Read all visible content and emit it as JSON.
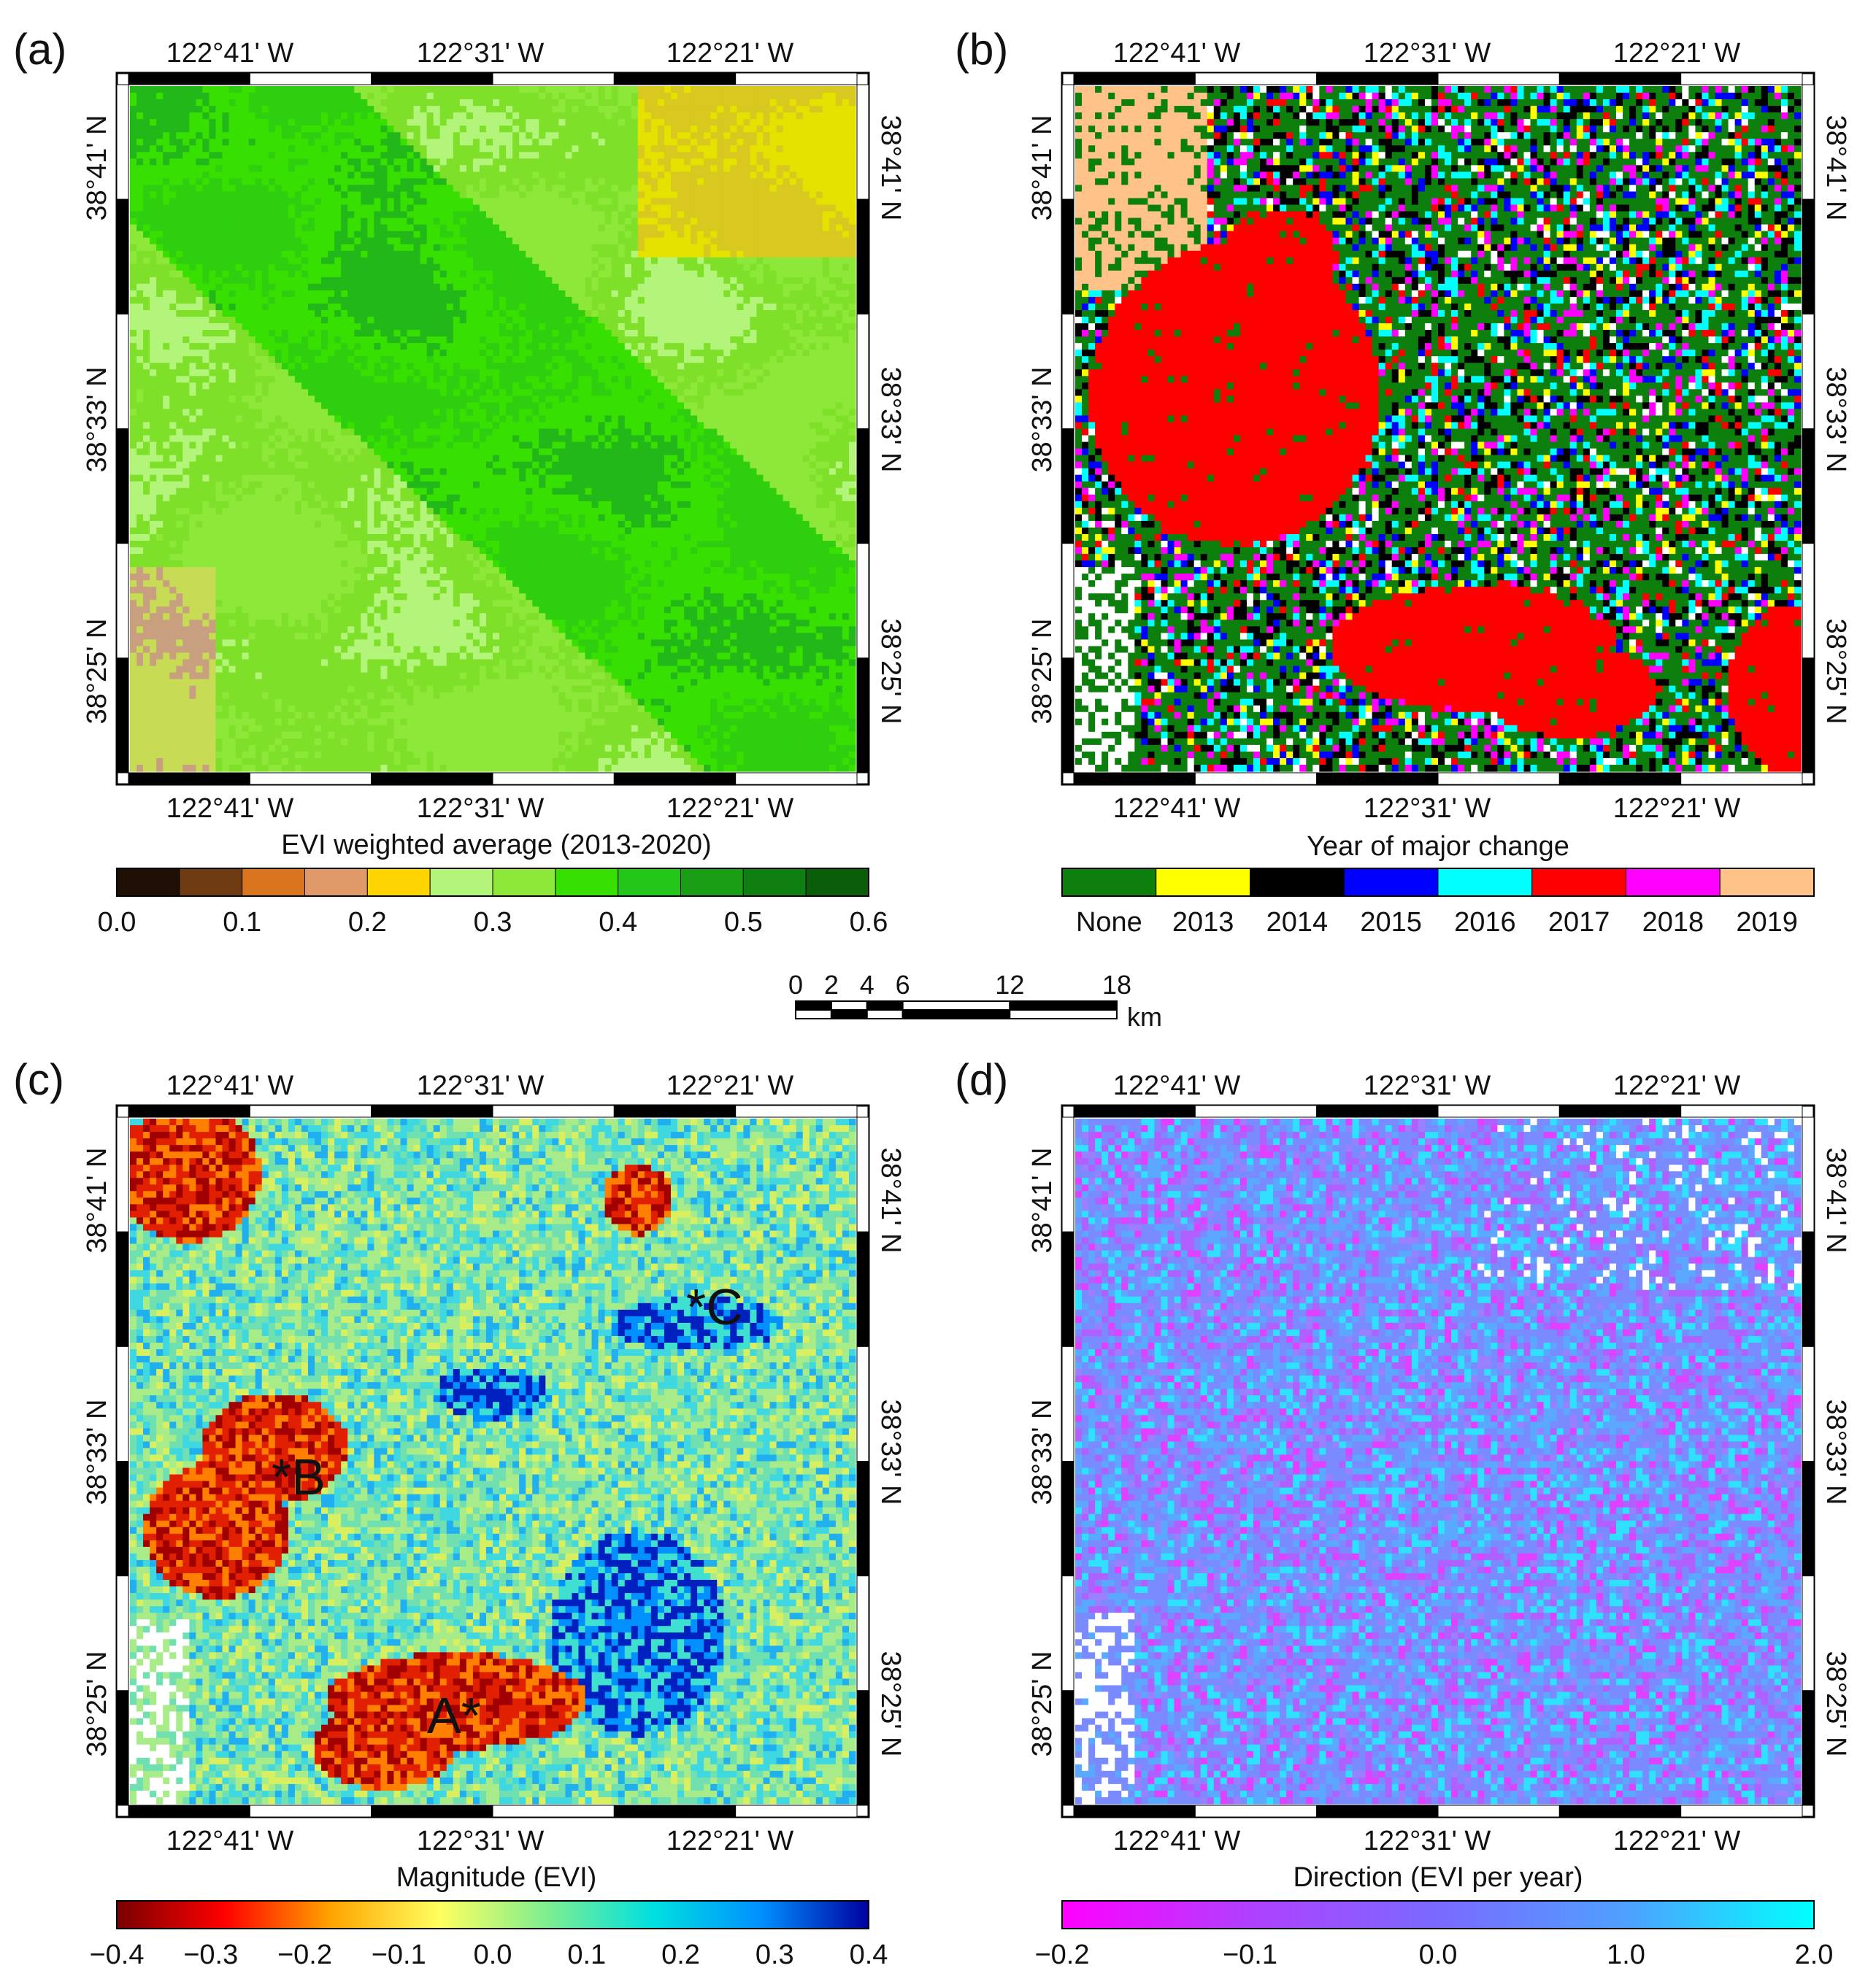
{
  "panels": [
    {
      "letter": "(a)",
      "lon_labels": [
        "122°41' W",
        "122°31' W",
        "122°21' W"
      ],
      "lat_labels": [
        "38°41' N",
        "38°33' N",
        "38°25' N"
      ],
      "map_theme": "evi",
      "markers": [],
      "legend": {
        "title": "EVI weighted average (2013-2020)",
        "type": "continuous-steps",
        "colors": [
          "#1f0f05",
          "#6e3a12",
          "#d9741f",
          "#e09a6a",
          "#ffd400",
          "#b3f47a",
          "#8ee83a",
          "#37e000",
          "#23c71a",
          "#199e15",
          "#0e8012",
          "#0a5e0a"
        ],
        "ticks": [
          "0.0",
          "0.1",
          "0.2",
          "0.3",
          "0.4",
          "0.5",
          "0.6"
        ]
      }
    },
    {
      "letter": "(b)",
      "lon_labels": [
        "122°41' W",
        "122°31' W",
        "122°21' W"
      ],
      "lat_labels": [
        "38°41' N",
        "38°33' N",
        "38°25' N"
      ],
      "map_theme": "year",
      "markers": [],
      "legend": {
        "title": "Year of major change",
        "type": "categorical",
        "colors": [
          "#0d7f0d",
          "#ffff00",
          "#000000",
          "#0000ff",
          "#00ffff",
          "#ff0000",
          "#ff00ff",
          "#ffc38a"
        ],
        "labels": [
          "None",
          "2013",
          "2014",
          "2015",
          "2016",
          "2017",
          "2018",
          "2019"
        ]
      }
    },
    {
      "letter": "(c)",
      "lon_labels": [
        "122°41' W",
        "122°31' W",
        "122°21' W"
      ],
      "lat_labels": [
        "38°41' N",
        "38°33' N",
        "38°25' N"
      ],
      "map_theme": "magnitude",
      "markers": [
        {
          "label": "*C"
        },
        {
          "label": "*B"
        },
        {
          "label": "A*"
        }
      ],
      "legend": {
        "title": "Magnitude (EVI)",
        "type": "gradient",
        "colors": [
          "#7a0000",
          "#ff0000",
          "#ffa500",
          "#ffff60",
          "#80ee90",
          "#00e0e0",
          "#0090ff",
          "#0000a0"
        ],
        "ticks": [
          "−0.4",
          "−0.3",
          "−0.2",
          "−0.1",
          "0.0",
          "0.1",
          "0.2",
          "0.3",
          "0.4"
        ]
      }
    },
    {
      "letter": "(d)",
      "lon_labels": [
        "122°41' W",
        "122°31' W",
        "122°21' W"
      ],
      "lat_labels": [
        "38°41' N",
        "38°33' N",
        "38°25' N"
      ],
      "map_theme": "direction",
      "markers": [],
      "legend": {
        "title": "Direction (EVI per year)",
        "type": "gradient",
        "colors": [
          "#ff00ff",
          "#b040ff",
          "#7a6aff",
          "#4fa0ff",
          "#00ffff"
        ],
        "ticks": [
          "−0.2",
          "−0.1",
          "0.0",
          "1.0",
          "2.0"
        ]
      }
    }
  ],
  "scale_bar": {
    "ticks": [
      "0",
      "2",
      "4",
      "6",
      "12",
      "18"
    ],
    "unit": "km"
  }
}
